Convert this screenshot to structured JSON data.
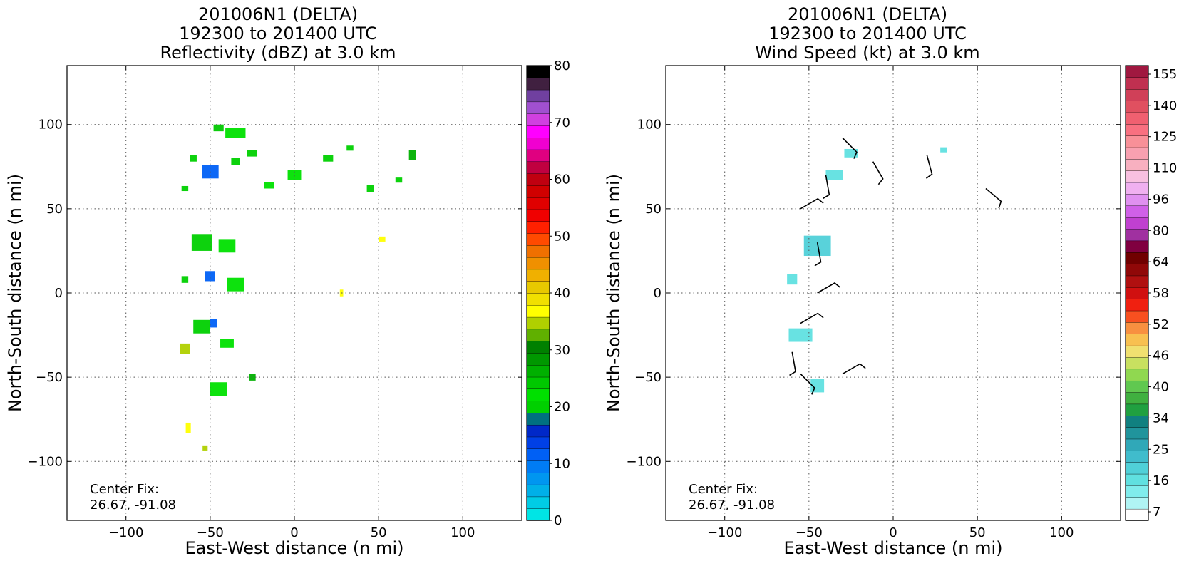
{
  "panels": [
    {
      "title": [
        "201006N1 (DELTA)",
        "192300 to 201400 UTC",
        "Reflectivity (dBZ) at 3.0 km"
      ],
      "xlabel": "East-West distance (n mi)",
      "ylabel": "North-South distance (n mi)",
      "center_fix_label": "Center Fix:",
      "center_fix_value": "26.67, -91.08"
    },
    {
      "title": [
        "201006N1 (DELTA)",
        "192300 to 201400 UTC",
        "Wind Speed (kt) at 3.0 km"
      ],
      "xlabel": "East-West distance (n mi)",
      "ylabel": "North-South distance (n mi)",
      "center_fix_label": "Center Fix:",
      "center_fix_value": "26.67, -91.08"
    }
  ],
  "chart_data": [
    {
      "type": "heatmap",
      "title": "201006N1 (DELTA) 192300 to 201400 UTC Reflectivity (dBZ) at 3.0 km",
      "xlabel": "East-West distance (n mi)",
      "ylabel": "North-South distance (n mi)",
      "xlim": [
        -135,
        135
      ],
      "ylim": [
        -135,
        135
      ],
      "xticks": [
        -100,
        -50,
        0,
        50,
        100
      ],
      "yticks": [
        -100,
        -50,
        0,
        50,
        100
      ],
      "grid": true,
      "colorbar": {
        "range": [
          0,
          80
        ],
        "ticks": [
          0,
          10,
          20,
          30,
          40,
          50,
          60,
          70,
          80
        ],
        "colors": [
          "#00e5e5",
          "#00cce5",
          "#00b0e8",
          "#0096f0",
          "#007cf5",
          "#0060f5",
          "#0040e6",
          "#0028c8",
          "#007080",
          "#00d000",
          "#00e000",
          "#00c800",
          "#00b000",
          "#009800",
          "#008000",
          "#60b000",
          "#b0d000",
          "#ffff00",
          "#f0e000",
          "#e8c800",
          "#f0b000",
          "#f09000",
          "#f07000",
          "#ff4a00",
          "#ff2000",
          "#f00000",
          "#e00000",
          "#d00000",
          "#c00010",
          "#c00040",
          "#e00080",
          "#f000d0",
          "#ff00ff",
          "#d040e0",
          "#a050d0",
          "#7040a0",
          "#402040",
          "#000000"
        ]
      },
      "annotation": "Center Fix: 26.67, -91.08",
      "echoes": [
        {
          "x": -35,
          "y": 95,
          "w": 12,
          "h": 6,
          "dbz": 22
        },
        {
          "x": -45,
          "y": 98,
          "w": 6,
          "h": 4,
          "dbz": 24
        },
        {
          "x": -25,
          "y": 83,
          "w": 6,
          "h": 4,
          "dbz": 20
        },
        {
          "x": -50,
          "y": 72,
          "w": 10,
          "h": 8,
          "dbz": 12
        },
        {
          "x": -35,
          "y": 78,
          "w": 5,
          "h": 4,
          "dbz": 20
        },
        {
          "x": -60,
          "y": 80,
          "w": 4,
          "h": 4,
          "dbz": 20
        },
        {
          "x": -65,
          "y": 62,
          "w": 4,
          "h": 3,
          "dbz": 20
        },
        {
          "x": -15,
          "y": 64,
          "w": 6,
          "h": 4,
          "dbz": 22
        },
        {
          "x": 0,
          "y": 70,
          "w": 8,
          "h": 6,
          "dbz": 22
        },
        {
          "x": 20,
          "y": 80,
          "w": 6,
          "h": 4,
          "dbz": 20
        },
        {
          "x": 33,
          "y": 86,
          "w": 4,
          "h": 3,
          "dbz": 20
        },
        {
          "x": 45,
          "y": 62,
          "w": 4,
          "h": 4,
          "dbz": 20
        },
        {
          "x": 70,
          "y": 82,
          "w": 4,
          "h": 6,
          "dbz": 26
        },
        {
          "x": 62,
          "y": 67,
          "w": 4,
          "h": 3,
          "dbz": 20
        },
        {
          "x": 52,
          "y": 32,
          "w": 4,
          "h": 3,
          "dbz": 36
        },
        {
          "x": -55,
          "y": 30,
          "w": 12,
          "h": 10,
          "dbz": 20
        },
        {
          "x": -40,
          "y": 28,
          "w": 10,
          "h": 8,
          "dbz": 22
        },
        {
          "x": -35,
          "y": 5,
          "w": 10,
          "h": 8,
          "dbz": 22
        },
        {
          "x": -50,
          "y": 10,
          "w": 6,
          "h": 6,
          "dbz": 12
        },
        {
          "x": -65,
          "y": 8,
          "w": 4,
          "h": 4,
          "dbz": 20
        },
        {
          "x": -55,
          "y": -20,
          "w": 10,
          "h": 8,
          "dbz": 20
        },
        {
          "x": -48,
          "y": -18,
          "w": 4,
          "h": 5,
          "dbz": 12
        },
        {
          "x": -65,
          "y": -33,
          "w": 6,
          "h": 6,
          "dbz": 34
        },
        {
          "x": -40,
          "y": -30,
          "w": 8,
          "h": 5,
          "dbz": 22
        },
        {
          "x": -45,
          "y": -57,
          "w": 10,
          "h": 8,
          "dbz": 22
        },
        {
          "x": -25,
          "y": -50,
          "w": 4,
          "h": 4,
          "dbz": 26
        },
        {
          "x": 28,
          "y": 0,
          "w": 2,
          "h": 4,
          "dbz": 36
        },
        {
          "x": -63,
          "y": -80,
          "w": 3,
          "h": 6,
          "dbz": 36
        },
        {
          "x": -53,
          "y": -92,
          "w": 3,
          "h": 3,
          "dbz": 34
        }
      ]
    },
    {
      "type": "heatmap",
      "title": "201006N1 (DELTA) 192300 to 201400 UTC Wind Speed (kt) at 3.0 km",
      "xlabel": "East-West distance (n mi)",
      "ylabel": "North-South distance (n mi)",
      "xlim": [
        -135,
        135
      ],
      "ylim": [
        -135,
        135
      ],
      "xticks": [
        -100,
        -50,
        0,
        50,
        100
      ],
      "yticks": [
        -100,
        -50,
        0,
        50,
        100
      ],
      "grid": true,
      "colorbar": {
        "ticks": [
          7,
          16,
          25,
          34,
          40,
          46,
          52,
          58,
          64,
          80,
          96,
          110,
          125,
          140,
          155
        ],
        "colors": [
          "#ffffff",
          "#b0f4f4",
          "#80ecec",
          "#60e0e0",
          "#50d0d8",
          "#40bccc",
          "#30a8b8",
          "#20949c",
          "#108080",
          "#20a040",
          "#40b040",
          "#60c850",
          "#90d850",
          "#c8e060",
          "#f0e070",
          "#f8c050",
          "#f89040",
          "#f85020",
          "#f02010",
          "#d01010",
          "#b01010",
          "#900808",
          "#700000",
          "#800040",
          "#a030a0",
          "#c040d0",
          "#d060e8",
          "#e090f0",
          "#f0b0f0",
          "#f8c0e0",
          "#f8b0c0",
          "#f8a0b0",
          "#f89098",
          "#f87080",
          "#f06070",
          "#e05060",
          "#d04058",
          "#c03050",
          "#a01840"
        ]
      },
      "annotation": "Center Fix: 26.67, -91.08",
      "echoes": [
        {
          "x": -45,
          "y": 28,
          "w": 16,
          "h": 12,
          "kt": 22
        },
        {
          "x": -55,
          "y": -25,
          "w": 14,
          "h": 8,
          "kt": 18
        },
        {
          "x": -25,
          "y": 83,
          "w": 8,
          "h": 5,
          "kt": 16
        },
        {
          "x": -35,
          "y": 70,
          "w": 10,
          "h": 6,
          "kt": 16
        },
        {
          "x": -60,
          "y": 8,
          "w": 6,
          "h": 6,
          "kt": 18
        },
        {
          "x": -45,
          "y": -55,
          "w": 8,
          "h": 8,
          "kt": 16
        },
        {
          "x": 30,
          "y": 85,
          "w": 4,
          "h": 3,
          "kt": 16
        }
      ],
      "wind_barbs": [
        {
          "x": -30,
          "y": 92,
          "dir_deg": 315
        },
        {
          "x": -40,
          "y": 70,
          "dir_deg": 280
        },
        {
          "x": -12,
          "y": 78,
          "dir_deg": 300
        },
        {
          "x": 20,
          "y": 82,
          "dir_deg": 285
        },
        {
          "x": 55,
          "y": 62,
          "dir_deg": 320
        },
        {
          "x": -55,
          "y": 50,
          "dir_deg": 30
        },
        {
          "x": -45,
          "y": 30,
          "dir_deg": 280
        },
        {
          "x": -45,
          "y": 0,
          "dir_deg": 30
        },
        {
          "x": -55,
          "y": -18,
          "dir_deg": 30
        },
        {
          "x": -60,
          "y": -35,
          "dir_deg": 280
        },
        {
          "x": -55,
          "y": -48,
          "dir_deg": 315
        },
        {
          "x": -30,
          "y": -48,
          "dir_deg": 30
        }
      ]
    }
  ]
}
